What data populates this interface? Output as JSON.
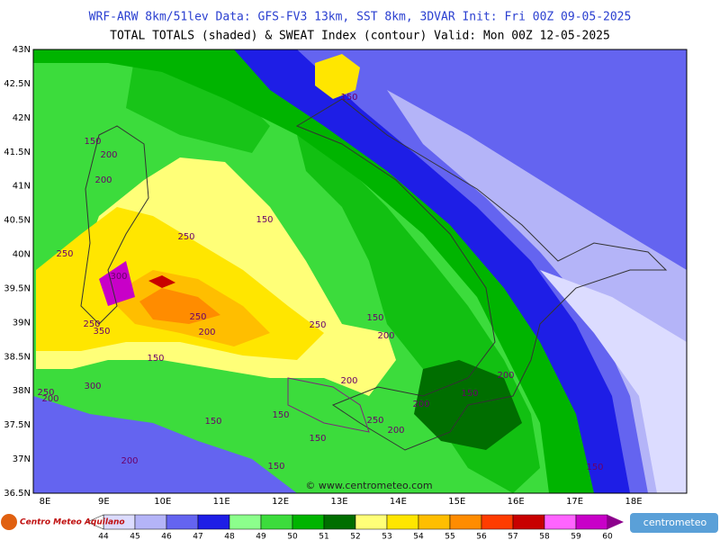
{
  "header": {
    "line1": "WRF-ARW 8km/51lev  Data: GFS-FV3 13km, SST 8km, 3DVAR  Init: Fri 00Z 09-05-2025",
    "line2": "TOTAL TOTALS (shaded) & SWEAT Index (contour)  Valid: Mon 00Z 12-05-2025"
  },
  "map": {
    "lat_labels": [
      "43N",
      "42.5N",
      "42N",
      "41.5N",
      "41N",
      "40.5N",
      "40N",
      "39.5N",
      "39N",
      "38.5N",
      "38N",
      "37.5N",
      "37N",
      "36.5N"
    ],
    "lon_labels": [
      "8E",
      "9E",
      "10E",
      "11E",
      "12E",
      "13E",
      "14E",
      "15E",
      "16E",
      "17E",
      "18E"
    ],
    "contour_labels": [
      150,
      200,
      200,
      150,
      150,
      250,
      250,
      300,
      250,
      350,
      250,
      200,
      250,
      150,
      200,
      150,
      200,
      300,
      250,
      200,
      150,
      200,
      200,
      150,
      150,
      250,
      200,
      150,
      200,
      150,
      150
    ],
    "watermark": "© www.centrometeo.com"
  },
  "colorbar": {
    "levels": [
      44,
      45,
      46,
      47,
      48,
      49,
      50,
      51,
      52,
      53,
      54,
      55,
      56,
      57,
      58,
      59,
      60
    ],
    "colors": [
      "#dcdcff",
      "#b4b4f8",
      "#6464f0",
      "#1e1ee6",
      "#8cff8c",
      "#3cdc3c",
      "#00b400",
      "#006e00",
      "#ffff78",
      "#ffe600",
      "#ffbe00",
      "#ff8c00",
      "#ff3c00",
      "#c80000",
      "#ff64ff",
      "#c800c8"
    ],
    "over_color": "#8c008c"
  },
  "footer": {
    "left_logo": "Centro Meteo Aquilano",
    "right_logo": "centrometeo"
  }
}
